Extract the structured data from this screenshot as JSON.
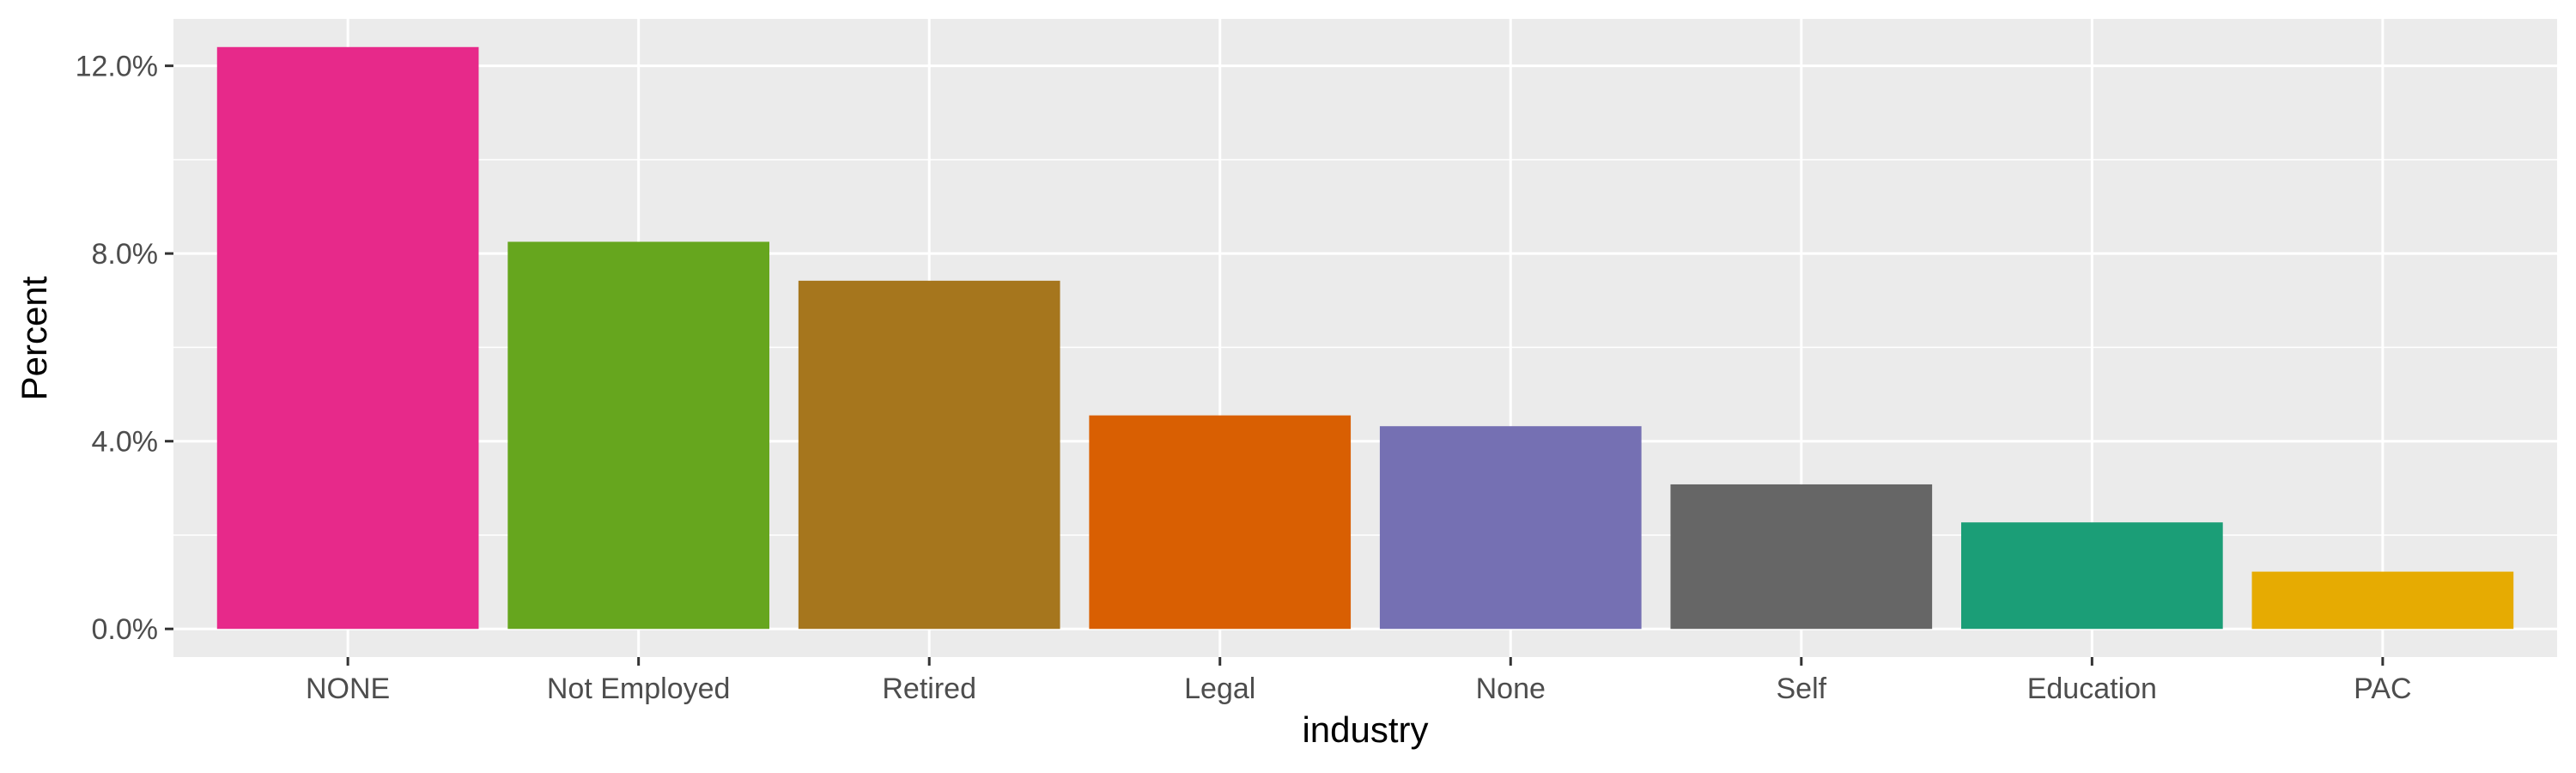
{
  "chart_data": {
    "type": "bar",
    "xlabel": "industry",
    "ylabel": "Percent",
    "categories": [
      "NONE",
      "Not Employed",
      "Retired",
      "Legal",
      "None",
      "Self",
      "Education",
      "PAC"
    ],
    "values": [
      12.4,
      8.25,
      7.42,
      4.55,
      4.32,
      3.08,
      2.27,
      1.22
    ],
    "colors": [
      "#E7298A",
      "#66A61E",
      "#A6761D",
      "#D95F02",
      "#7570B3",
      "#666666",
      "#1B9E77",
      "#E6AB02"
    ],
    "ylim": [
      -0.6,
      13.0
    ],
    "y_ticks": [
      0,
      4,
      8,
      12
    ],
    "y_tick_labels": [
      "0.0%",
      "4.0%",
      "8.0%",
      "12.0%"
    ],
    "grid": true,
    "legend": "none"
  }
}
